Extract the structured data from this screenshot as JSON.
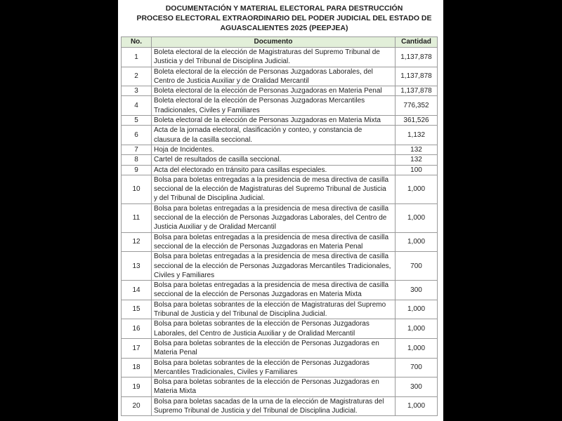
{
  "title": {
    "line1": "DOCUMENTACIÓN Y MATERIAL ELECTORAL PARA DESTRUCCIÓN",
    "line2": "PROCESO ELECTORAL EXTRAORDINARIO DEL PODER JUDICIAL DEL ESTADO DE",
    "line3": "AGUASCALIENTES 2025 (PEEPJEA)"
  },
  "header": {
    "no": "No.",
    "documento": "Documento",
    "cantidad": "Cantidad",
    "header_color": "#e2efd9"
  },
  "rows": [
    {
      "no": "1",
      "lines": [
        "Boleta electoral de la elección de Magistraturas del Supremo Tribunal de",
        "Justicia y del Tribunal de Disciplina Judicial."
      ],
      "cantidad": "1,137,878"
    },
    {
      "no": "2",
      "lines": [
        "Boleta electoral de la elección de Personas Juzgadoras Laborales, del",
        "Centro de Justicia Auxiliar y de Oralidad Mercantil"
      ],
      "cantidad": "1,137,878"
    },
    {
      "no": "3",
      "lines": [
        "Boleta electoral de la elección de Personas Juzgadoras en Materia Penal"
      ],
      "cantidad": "1,137,878"
    },
    {
      "no": "4",
      "lines": [
        "Boleta electoral de la elección de Personas Juzgadoras Mercantiles",
        "Tradicionales, Civiles y Familiares"
      ],
      "cantidad": "776,352"
    },
    {
      "no": "5",
      "lines": [
        "Boleta electoral de la elección de Personas Juzgadoras en Materia Mixta"
      ],
      "cantidad": "361,526"
    },
    {
      "no": "6",
      "lines": [
        "Acta de la jornada electoral, clasificación y conteo, y constancia de",
        "clausura de la casilla seccional."
      ],
      "cantidad": "1,132"
    },
    {
      "no": "7",
      "lines": [
        "Hoja de Incidentes."
      ],
      "cantidad": "132"
    },
    {
      "no": "8",
      "lines": [
        "Cartel de resultados de casilla seccional."
      ],
      "cantidad": "132"
    },
    {
      "no": "9",
      "lines": [
        "Acta del electorado en tránsito para casillas especiales."
      ],
      "cantidad": "100"
    },
    {
      "no": "10",
      "lines": [
        "Bolsa para boletas entregadas a la presidencia de mesa directiva de casilla",
        "seccional de la elección de Magistraturas del Supremo Tribunal de Justicia",
        "y del Tribunal de Disciplina Judicial."
      ],
      "cantidad": "1,000"
    },
    {
      "no": "11",
      "lines": [
        "Bolsa para boletas entregadas a la presidencia de mesa directiva de casilla",
        "seccional de la elección de Personas Juzgadoras Laborales, del Centro de",
        "Justicia Auxiliar y de Oralidad Mercantil"
      ],
      "cantidad": "1,000"
    },
    {
      "no": "12",
      "lines": [
        "Bolsa para boletas entregadas a la presidencia de mesa directiva de casilla",
        "seccional de la elección de Personas Juzgadoras en Materia Penal"
      ],
      "cantidad": "1,000"
    },
    {
      "no": "13",
      "lines": [
        "Bolsa para boletas entregadas a la presidencia de mesa directiva de casilla",
        "seccional de la elección de Personas Juzgadoras Mercantiles Tradicionales,",
        "Civiles y Familiares"
      ],
      "cantidad": "700"
    },
    {
      "no": "14",
      "lines": [
        "Bolsa para boletas entregadas a la presidencia de mesa directiva de casilla",
        "seccional de la elección de Personas Juzgadoras en Materia Mixta"
      ],
      "cantidad": "300"
    },
    {
      "no": "15",
      "lines": [
        "Bolsa para boletas sobrantes de la elección de Magistraturas del Supremo",
        "Tribunal de Justicia y del Tribunal de Disciplina Judicial."
      ],
      "cantidad": "1,000"
    },
    {
      "no": "16",
      "lines": [
        "Bolsa para boletas sobrantes de la elección de Personas Juzgadoras",
        "Laborales, del Centro de Justicia Auxiliar y de Oralidad Mercantil"
      ],
      "cantidad": "1,000"
    },
    {
      "no": "17",
      "lines": [
        "Bolsa para boletas sobrantes de la elección de Personas Juzgadoras en",
        "Materia Penal"
      ],
      "cantidad": "1,000"
    },
    {
      "no": "18",
      "lines": [
        "Bolsa para boletas sobrantes de la elección de Personas Juzgadoras",
        "Mercantiles Tradicionales, Civiles y Familiares"
      ],
      "cantidad": "700"
    },
    {
      "no": "19",
      "lines": [
        "Bolsa para boletas sobrantes de la elección de Personas Juzgadoras en",
        "Materia Mixta"
      ],
      "cantidad": "300"
    },
    {
      "no": "20",
      "lines": [
        "Bolsa para boletas sacadas de la urna de la elección de Magistraturas del",
        "Supremo Tribunal de Justicia y del Tribunal de Disciplina Judicial."
      ],
      "cantidad": "1,000"
    }
  ]
}
